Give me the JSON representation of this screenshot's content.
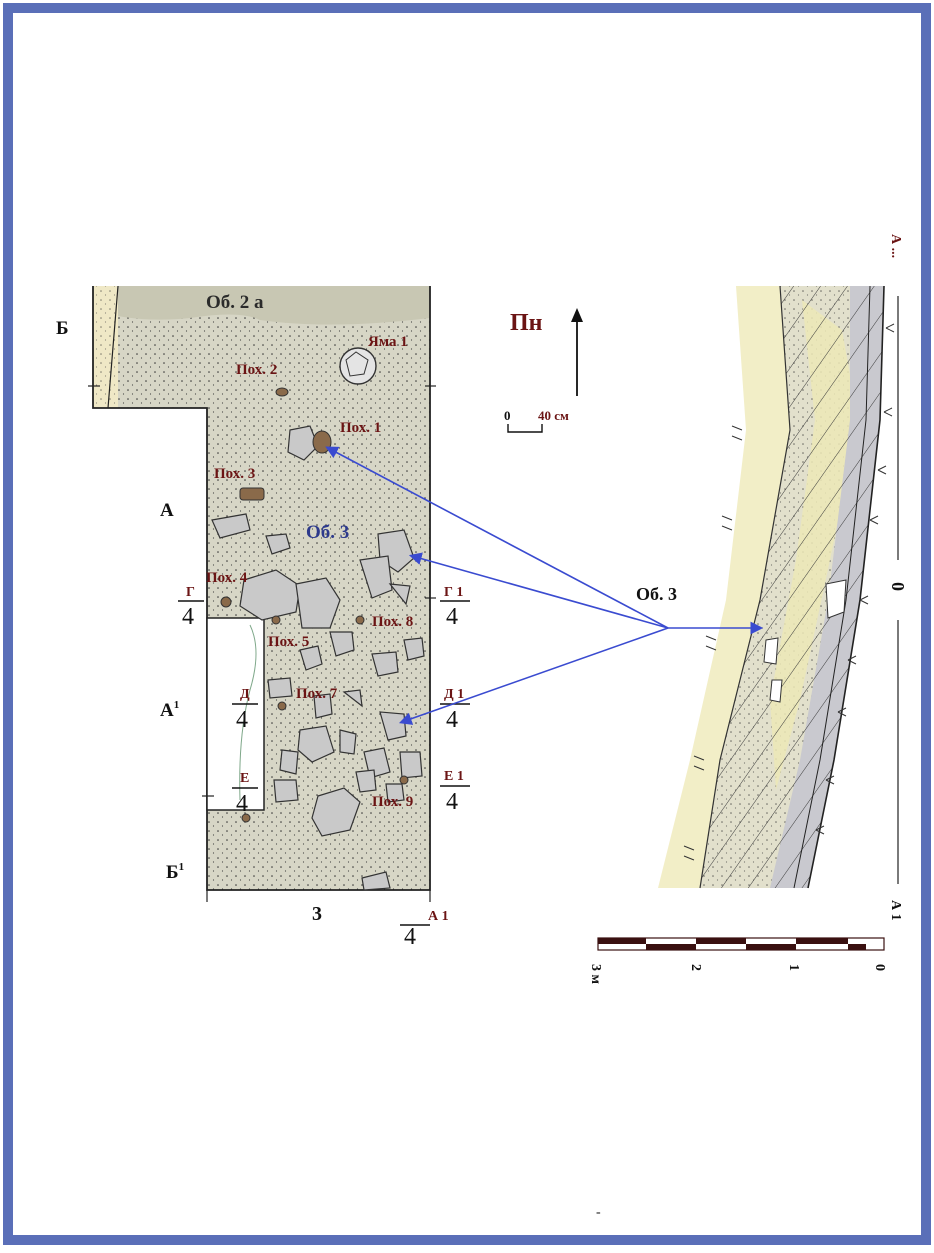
{
  "colors": {
    "frame": "#5a6fb8",
    "fill_area": "#d7d6c6",
    "pit_fill": "#c8c7b3",
    "sand": "#f2eec7",
    "strip_left": "#efe8c6",
    "label_red": "#6b1414",
    "label_blue": "#2d3a8c",
    "arrow_blue": "#3a4bd0",
    "stone_fill": "#c9c9c9",
    "brown": "#8a6a4a"
  },
  "plan": {
    "area_label": "Об. 2 а",
    "ob3_label": "Об. 3",
    "pit_label": "Яма 1",
    "burials": [
      "Пох. 1",
      "Пох. 2",
      "Пох. 3",
      "Пох. 4",
      "Пох. 5",
      "Пох. 7",
      "Пох. 8",
      "Пох. 9"
    ],
    "left_letters": {
      "b": "Б",
      "a": "А",
      "a1": "А",
      "a1_sup": "1",
      "b1": "Б",
      "b1_sup": "1"
    },
    "bottom_number": "3",
    "section_marks": [
      {
        "top": "Г",
        "bottom": "4"
      },
      {
        "top": "Д",
        "bottom": "4"
      },
      {
        "top": "Е",
        "bottom": "4"
      },
      {
        "top": "Г 1",
        "bottom": "4"
      },
      {
        "top": "Д 1",
        "bottom": "4"
      },
      {
        "top": "Е 1",
        "bottom": "4"
      },
      {
        "top": "А 1",
        "bottom": "4"
      }
    ]
  },
  "north": {
    "label": "Пн"
  },
  "small_scale": {
    "zero": "0",
    "end": "40 см"
  },
  "section": {
    "top_label": "А ...",
    "mid_label": "0",
    "bottom_label": "А 1",
    "ob3_label": "Об. 3"
  },
  "big_scale": {
    "labels": [
      "0",
      "1",
      "2",
      "3 м"
    ]
  },
  "page_mark": "-"
}
